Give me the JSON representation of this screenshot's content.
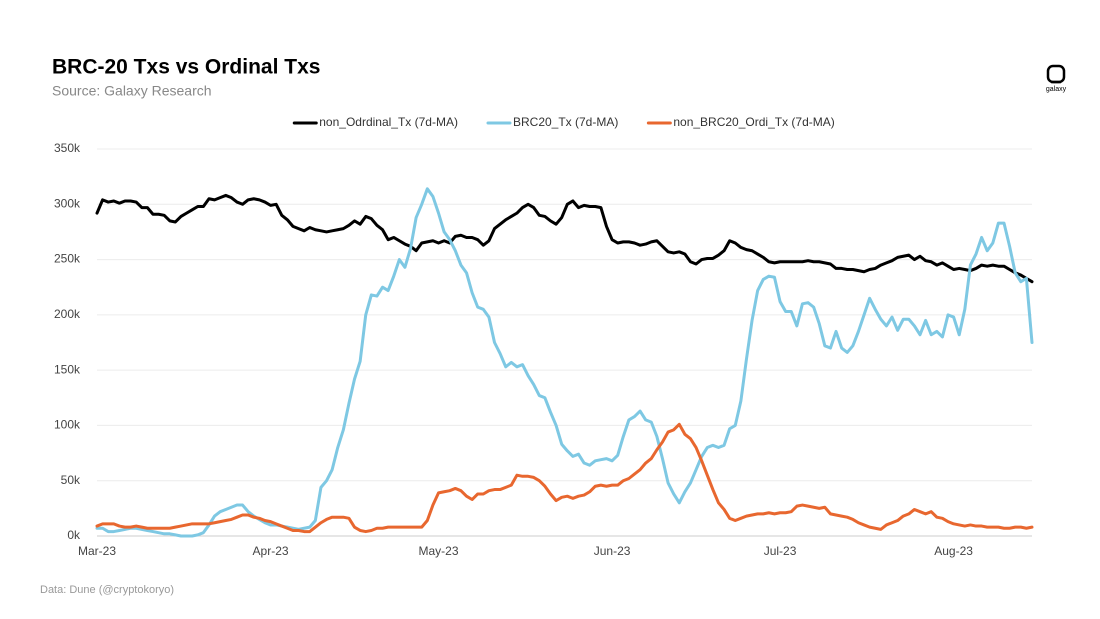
{
  "chart_data": {
    "type": "line",
    "title": "BRC-20 Txs vs Ordinal Txs",
    "subtitle": "Source: Galaxy Research",
    "note": "Data: Dune (@cryptokoryo)",
    "logo": "galaxy",
    "grid": true,
    "legend": "top",
    "categories": [
      "Mar-23",
      null,
      null,
      null,
      null,
      null,
      null,
      null,
      null,
      null,
      null,
      null,
      null,
      null,
      null,
      null,
      null,
      null,
      null,
      null,
      null,
      null,
      null,
      null,
      null,
      null,
      null,
      null,
      null,
      null,
      null,
      "Apr-23",
      null,
      null,
      null,
      null,
      null,
      null,
      null,
      null,
      null,
      null,
      null,
      null,
      null,
      null,
      null,
      null,
      null,
      null,
      null,
      null,
      null,
      null,
      null,
      null,
      null,
      null,
      null,
      null,
      null,
      "May-23",
      null,
      null,
      null,
      null,
      null,
      null,
      null,
      null,
      null,
      null,
      null,
      null,
      null,
      null,
      null,
      null,
      null,
      null,
      null,
      null,
      null,
      null,
      null,
      null,
      null,
      null,
      null,
      null,
      null,
      null,
      "Jun-23",
      null,
      null,
      null,
      null,
      null,
      null,
      null,
      null,
      null,
      null,
      null,
      null,
      null,
      null,
      null,
      null,
      null,
      null,
      null,
      null,
      null,
      null,
      null,
      null,
      null,
      null,
      null,
      null,
      null,
      "Jul-23",
      null,
      null,
      null,
      null,
      null,
      null,
      null,
      null,
      null,
      null,
      null,
      null,
      null,
      null,
      null,
      null,
      null,
      null,
      null,
      null,
      null,
      null,
      null,
      null,
      null,
      null,
      null,
      null,
      null,
      null,
      "Aug-23",
      null,
      null,
      null,
      null,
      null,
      null,
      null,
      null,
      null,
      null,
      null,
      null,
      null,
      null
    ],
    "ylim": [
      0,
      350000
    ],
    "yticks": [
      {
        "value": 0,
        "label": "0k"
      },
      {
        "value": 50000,
        "label": "50k"
      },
      {
        "value": 100000,
        "label": "100k"
      },
      {
        "value": 150000,
        "label": "150k"
      },
      {
        "value": 200000,
        "label": "200k"
      },
      {
        "value": 250000,
        "label": "250k"
      },
      {
        "value": 300000,
        "label": "300k"
      },
      {
        "value": 350000,
        "label": "350k"
      }
    ],
    "series": [
      {
        "name": "non_Odrdinal_Tx (7d-MA)",
        "color": "#000000",
        "values": [
          292000,
          304000,
          302000,
          303000,
          301000,
          303000,
          303000,
          302000,
          297000,
          297000,
          291000,
          291000,
          290000,
          285000,
          284000,
          289000,
          292000,
          295000,
          298000,
          298000,
          305000,
          304000,
          306000,
          308000,
          306000,
          302000,
          300000,
          304000,
          305000,
          304000,
          302000,
          299000,
          300000,
          290000,
          286000,
          280000,
          278000,
          276000,
          279000,
          277000,
          276000,
          275000,
          276000,
          277000,
          278000,
          281000,
          285000,
          282000,
          289000,
          287000,
          281000,
          277000,
          268000,
          270000,
          267000,
          264000,
          262000,
          258000,
          265000,
          266000,
          267000,
          265000,
          267000,
          265000,
          271000,
          272000,
          270000,
          270000,
          268000,
          263000,
          267000,
          278000,
          282000,
          286000,
          289000,
          292000,
          297000,
          300000,
          297000,
          290000,
          289000,
          285000,
          282000,
          288000,
          300000,
          303000,
          297000,
          299000,
          298000,
          298000,
          297000,
          280000,
          268000,
          265000,
          266000,
          266000,
          265000,
          263000,
          264000,
          266000,
          267000,
          262000,
          257000,
          256000,
          257000,
          255000,
          248000,
          246000,
          250000,
          251000,
          251000,
          254000,
          258000,
          267000,
          265000,
          261000,
          259000,
          258000,
          255000,
          252000,
          248000,
          247000,
          248000,
          248000,
          248000,
          248000,
          248000,
          249000,
          248000,
          248000,
          247000,
          246000,
          242000,
          242000,
          241000,
          241000,
          240000,
          239000,
          241000,
          242000,
          245000,
          247000,
          249000,
          252000,
          253000,
          254000,
          250000,
          253000,
          249000,
          248000,
          245000,
          247000,
          244000,
          241000,
          242000,
          241000,
          240000,
          242000,
          245000,
          244000,
          245000,
          244000,
          244000,
          241000,
          238000,
          236000,
          233000,
          230000
        ]
      },
      {
        "name": "BRC20_Tx (7d-MA)",
        "color": "#7ec8e3",
        "values": [
          7000,
          7000,
          4000,
          4000,
          5000,
          6000,
          7000,
          7000,
          6000,
          5000,
          4000,
          3000,
          2000,
          2000,
          1000,
          0,
          0,
          0,
          1000,
          3000,
          10000,
          18000,
          22000,
          24000,
          26000,
          28000,
          28000,
          22000,
          18000,
          15000,
          12000,
          10000,
          10000,
          9000,
          8000,
          7000,
          6000,
          7000,
          8000,
          14000,
          44000,
          50000,
          60000,
          80000,
          96000,
          120000,
          142000,
          158000,
          200000,
          218000,
          217000,
          225000,
          222000,
          235000,
          250000,
          243000,
          260000,
          288000,
          300000,
          314000,
          307000,
          292000,
          275000,
          268000,
          258000,
          245000,
          238000,
          220000,
          207000,
          205000,
          198000,
          175000,
          165000,
          153000,
          157000,
          153000,
          155000,
          145000,
          137000,
          127000,
          125000,
          112000,
          100000,
          83000,
          77000,
          72000,
          74000,
          66000,
          64000,
          68000,
          69000,
          70000,
          68000,
          73000,
          90000,
          105000,
          108000,
          113000,
          105000,
          103000,
          90000,
          70000,
          48000,
          38000,
          30000,
          40000,
          48000,
          60000,
          72000,
          80000,
          82000,
          80000,
          82000,
          97000,
          100000,
          122000,
          160000,
          195000,
          222000,
          232000,
          235000,
          234000,
          212000,
          203000,
          203000,
          190000,
          210000,
          211000,
          207000,
          192000,
          172000,
          170000,
          185000,
          170000,
          166000,
          172000,
          185000,
          200000,
          215000,
          205000,
          196000,
          190000,
          198000,
          186000,
          196000,
          196000,
          190000,
          182000,
          195000,
          182000,
          185000,
          180000,
          200000,
          198000,
          182000,
          205000,
          245000,
          255000,
          270000,
          258000,
          265000,
          283000,
          283000,
          262000,
          238000,
          230000,
          233000,
          175000
        ]
      },
      {
        "name": "non_BRC20_Ordi_Tx (7d-MA)",
        "color": "#e8672f",
        "values": [
          9000,
          11000,
          11000,
          11000,
          9000,
          8000,
          8000,
          9000,
          8000,
          7000,
          7000,
          7000,
          7000,
          7000,
          8000,
          9000,
          10000,
          11000,
          11000,
          11000,
          11000,
          12000,
          13000,
          14000,
          15000,
          17000,
          19000,
          19000,
          17000,
          16000,
          14000,
          13000,
          11000,
          9000,
          7000,
          5000,
          5000,
          4000,
          4000,
          8000,
          12000,
          15000,
          17000,
          17000,
          17000,
          16000,
          8000,
          5000,
          4000,
          5000,
          7000,
          7000,
          8000,
          8000,
          8000,
          8000,
          8000,
          8000,
          8000,
          14000,
          28000,
          39000,
          40000,
          41000,
          43000,
          41000,
          36000,
          33000,
          38000,
          38000,
          41000,
          42000,
          42000,
          44000,
          46000,
          55000,
          54000,
          54000,
          53000,
          50000,
          45000,
          38000,
          32000,
          35000,
          36000,
          34000,
          36000,
          37000,
          40000,
          45000,
          46000,
          45000,
          46000,
          46000,
          50000,
          52000,
          56000,
          60000,
          66000,
          70000,
          78000,
          85000,
          94000,
          96000,
          101000,
          92000,
          88000,
          80000,
          68000,
          55000,
          42000,
          30000,
          24000,
          16000,
          14000,
          16000,
          18000,
          19000,
          20000,
          20000,
          21000,
          20000,
          21000,
          21000,
          22000,
          27000,
          28000,
          27000,
          26000,
          25000,
          26000,
          20000,
          19000,
          18000,
          17000,
          15000,
          12000,
          10000,
          8000,
          7000,
          6000,
          10000,
          12000,
          14000,
          18000,
          20000,
          24000,
          22000,
          20000,
          22000,
          17000,
          16000,
          13000,
          11000,
          10000,
          9000,
          10000,
          9000,
          9000,
          8000,
          8000,
          8000,
          7000,
          7000,
          8000,
          8000,
          7000,
          8000
        ]
      }
    ]
  }
}
